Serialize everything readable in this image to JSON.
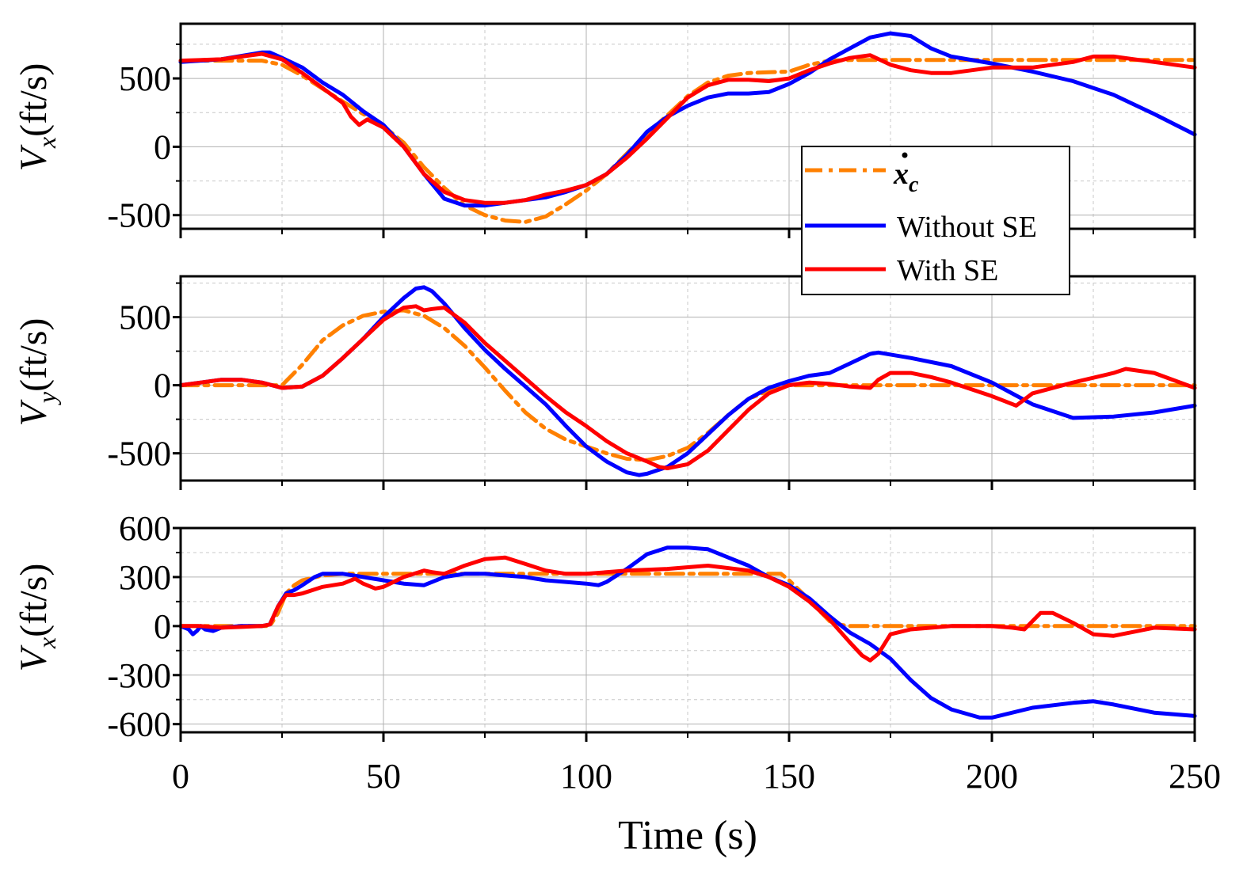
{
  "chart_data": [
    {
      "type": "line",
      "panel": "top",
      "ylabel": {
        "main": "V",
        "sub": "x",
        "unit": "(ft/s)"
      },
      "xlim": [
        0,
        250
      ],
      "ylim": [
        -600,
        900
      ],
      "yticks": [
        -500,
        0,
        500
      ],
      "ytick_labels": [
        "-500",
        "0",
        "500"
      ],
      "grid": true,
      "series": [
        {
          "name": "x_c_dot",
          "color": "#ff8000",
          "style": "dashdot",
          "x": [
            0,
            10,
            20,
            25,
            30,
            40,
            50,
            55,
            60,
            65,
            70,
            75,
            80,
            85,
            90,
            95,
            100,
            105,
            110,
            115,
            120,
            125,
            130,
            135,
            140,
            145,
            150,
            155,
            160,
            165,
            170,
            175,
            180,
            190,
            200,
            210,
            220,
            230,
            240,
            250
          ],
          "y": [
            630,
            630,
            630,
            600,
            520,
            330,
            150,
            30,
            -150,
            -300,
            -430,
            -500,
            -540,
            -550,
            -510,
            -420,
            -320,
            -200,
            -50,
            100,
            230,
            370,
            470,
            520,
            540,
            545,
            550,
            600,
            630,
            635,
            635,
            635,
            635,
            635,
            635,
            635,
            635,
            635,
            635,
            635
          ]
        },
        {
          "name": "Without SE",
          "color": "#0000ff",
          "style": "solid",
          "x": [
            0,
            10,
            20,
            22,
            25,
            30,
            35,
            40,
            45,
            50,
            55,
            60,
            65,
            70,
            75,
            80,
            85,
            90,
            95,
            100,
            105,
            110,
            115,
            120,
            125,
            130,
            135,
            140,
            145,
            150,
            155,
            160,
            165,
            170,
            175,
            180,
            185,
            190,
            200,
            210,
            220,
            230,
            240,
            250
          ],
          "y": [
            620,
            640,
            690,
            690,
            650,
            580,
            470,
            380,
            260,
            160,
            0,
            -200,
            -380,
            -430,
            -430,
            -410,
            -390,
            -370,
            -330,
            -280,
            -200,
            -60,
            110,
            220,
            300,
            360,
            390,
            390,
            400,
            460,
            540,
            640,
            720,
            800,
            830,
            810,
            720,
            660,
            610,
            550,
            480,
            380,
            240,
            90
          ]
        },
        {
          "name": "With SE",
          "color": "#ff0000",
          "style": "solid",
          "x": [
            0,
            10,
            20,
            25,
            30,
            35,
            40,
            42,
            44,
            46,
            50,
            55,
            60,
            65,
            70,
            75,
            80,
            85,
            90,
            95,
            100,
            105,
            110,
            115,
            120,
            125,
            130,
            135,
            140,
            145,
            150,
            155,
            160,
            165,
            170,
            175,
            180,
            185,
            190,
            200,
            210,
            220,
            225,
            230,
            240,
            250
          ],
          "y": [
            630,
            640,
            680,
            640,
            540,
            430,
            320,
            220,
            160,
            200,
            140,
            0,
            -200,
            -330,
            -390,
            -410,
            -410,
            -390,
            -350,
            -320,
            -280,
            -200,
            -80,
            60,
            210,
            360,
            450,
            490,
            490,
            480,
            500,
            560,
            610,
            650,
            670,
            600,
            560,
            540,
            540,
            580,
            580,
            620,
            660,
            660,
            620,
            580
          ]
        }
      ]
    },
    {
      "type": "line",
      "panel": "middle",
      "ylabel": {
        "main": "V",
        "sub": "y",
        "unit": "(ft/s)"
      },
      "xlim": [
        0,
        250
      ],
      "ylim": [
        -700,
        800
      ],
      "yticks": [
        -500,
        0,
        500
      ],
      "ytick_labels": [
        "-500",
        "0",
        "500"
      ],
      "grid": true,
      "series": [
        {
          "name": "x_c_dot",
          "color": "#ff8000",
          "style": "dashdot",
          "x": [
            0,
            10,
            20,
            25,
            30,
            35,
            40,
            45,
            50,
            55,
            60,
            65,
            70,
            75,
            80,
            85,
            90,
            95,
            100,
            105,
            110,
            115,
            120,
            125,
            130,
            135,
            140,
            145,
            150,
            155,
            160,
            170,
            180,
            190,
            200,
            210,
            220,
            230,
            240,
            250
          ],
          "y": [
            0,
            0,
            0,
            0,
            150,
            330,
            440,
            510,
            540,
            550,
            510,
            420,
            290,
            130,
            -40,
            -200,
            -320,
            -400,
            -450,
            -500,
            -540,
            -550,
            -520,
            -460,
            -350,
            -220,
            -100,
            -40,
            0,
            0,
            0,
            0,
            0,
            0,
            0,
            0,
            0,
            0,
            0,
            0
          ]
        },
        {
          "name": "Without SE",
          "color": "#0000ff",
          "style": "solid",
          "x": [
            0,
            10,
            15,
            20,
            25,
            30,
            35,
            40,
            45,
            50,
            55,
            58,
            60,
            62,
            65,
            70,
            75,
            80,
            85,
            90,
            95,
            100,
            105,
            110,
            113,
            115,
            120,
            125,
            130,
            135,
            140,
            145,
            150,
            155,
            160,
            165,
            170,
            172,
            180,
            190,
            200,
            210,
            220,
            230,
            240,
            250
          ],
          "y": [
            0,
            40,
            40,
            20,
            -20,
            -10,
            70,
            200,
            340,
            500,
            640,
            710,
            720,
            690,
            600,
            420,
            260,
            120,
            -10,
            -140,
            -300,
            -450,
            -560,
            -640,
            -660,
            -650,
            -600,
            -500,
            -360,
            -220,
            -100,
            -20,
            30,
            70,
            90,
            160,
            230,
            240,
            200,
            140,
            20,
            -140,
            -240,
            -230,
            -200,
            -150
          ]
        },
        {
          "name": "With SE",
          "color": "#ff0000",
          "style": "solid",
          "x": [
            0,
            10,
            15,
            20,
            25,
            30,
            35,
            40,
            45,
            50,
            55,
            58,
            60,
            62,
            65,
            70,
            75,
            80,
            85,
            90,
            95,
            100,
            105,
            110,
            115,
            118,
            120,
            125,
            130,
            135,
            140,
            145,
            150,
            155,
            160,
            165,
            170,
            172,
            175,
            180,
            185,
            190,
            200,
            206,
            210,
            220,
            230,
            233,
            240,
            250
          ],
          "y": [
            0,
            40,
            40,
            20,
            -20,
            -10,
            70,
            200,
            340,
            480,
            570,
            580,
            550,
            560,
            570,
            460,
            310,
            180,
            50,
            -80,
            -200,
            -300,
            -410,
            -500,
            -560,
            -600,
            -610,
            -580,
            -480,
            -330,
            -180,
            -60,
            0,
            20,
            10,
            -10,
            -20,
            40,
            90,
            90,
            60,
            20,
            -80,
            -150,
            -60,
            20,
            90,
            120,
            90,
            -20
          ]
        }
      ]
    },
    {
      "type": "line",
      "panel": "bottom",
      "ylabel": {
        "main": "V",
        "sub": "x",
        "unit": "(ft/s)"
      },
      "xlim": [
        0,
        250
      ],
      "ylim": [
        -650,
        600
      ],
      "yticks": [
        -600,
        -300,
        0,
        300,
        600
      ],
      "ytick_labels": [
        "-600",
        "-300",
        "0",
        "300",
        "600"
      ],
      "xticks": [
        0,
        50,
        100,
        150,
        200,
        250
      ],
      "xtick_labels": [
        "0",
        "50",
        "100",
        "150",
        "200",
        "250"
      ],
      "xlabel": "Time (s)",
      "grid": true,
      "series": [
        {
          "name": "x_c_dot",
          "color": "#ff8000",
          "style": "dashdot",
          "x": [
            0,
            10,
            20,
            22,
            24,
            26,
            28,
            30,
            35,
            40,
            50,
            60,
            70,
            80,
            90,
            100,
            110,
            120,
            130,
            140,
            148,
            150,
            155,
            158,
            160,
            162,
            165,
            170,
            180,
            190,
            200,
            210,
            220,
            230,
            240,
            250
          ],
          "y": [
            0,
            0,
            0,
            0,
            80,
            200,
            250,
            280,
            310,
            320,
            320,
            320,
            320,
            320,
            320,
            320,
            320,
            320,
            320,
            320,
            320,
            280,
            160,
            80,
            30,
            10,
            0,
            0,
            0,
            0,
            0,
            0,
            0,
            0,
            0,
            0
          ]
        },
        {
          "name": "Without SE",
          "color": "#0000ff",
          "style": "solid",
          "x": [
            0,
            2,
            3,
            4,
            5,
            6,
            8,
            10,
            15,
            20,
            22,
            24,
            26,
            28,
            30,
            33,
            35,
            40,
            45,
            50,
            55,
            60,
            65,
            70,
            75,
            80,
            85,
            90,
            95,
            100,
            103,
            105,
            110,
            115,
            120,
            125,
            130,
            135,
            140,
            145,
            150,
            155,
            160,
            165,
            170,
            175,
            180,
            185,
            190,
            197,
            200,
            210,
            220,
            225,
            230,
            240,
            250
          ],
          "y": [
            0,
            -20,
            -50,
            -30,
            0,
            -20,
            -30,
            -10,
            0,
            0,
            10,
            120,
            200,
            220,
            250,
            300,
            320,
            320,
            300,
            280,
            260,
            250,
            300,
            320,
            320,
            310,
            300,
            280,
            270,
            260,
            250,
            270,
            350,
            440,
            480,
            480,
            470,
            420,
            370,
            300,
            250,
            170,
            60,
            -40,
            -110,
            -200,
            -330,
            -440,
            -510,
            -560,
            -560,
            -500,
            -470,
            -460,
            -480,
            -530,
            -550
          ]
        },
        {
          "name": "With SE",
          "color": "#ff0000",
          "style": "solid",
          "x": [
            0,
            5,
            10,
            15,
            20,
            22,
            24,
            26,
            28,
            30,
            35,
            40,
            43,
            45,
            48,
            50,
            55,
            60,
            62,
            65,
            70,
            75,
            80,
            85,
            90,
            95,
            100,
            110,
            120,
            130,
            140,
            145,
            150,
            155,
            160,
            165,
            168,
            170,
            172,
            175,
            180,
            190,
            200,
            205,
            208,
            212,
            215,
            220,
            225,
            230,
            240,
            250
          ],
          "y": [
            0,
            0,
            -10,
            -5,
            0,
            10,
            120,
            190,
            190,
            200,
            240,
            260,
            290,
            260,
            230,
            240,
            300,
            340,
            330,
            320,
            370,
            410,
            420,
            380,
            340,
            320,
            320,
            340,
            350,
            370,
            340,
            300,
            240,
            150,
            40,
            -100,
            -180,
            -210,
            -170,
            -50,
            -20,
            0,
            0,
            -10,
            -20,
            80,
            80,
            20,
            -50,
            -60,
            -10,
            -20
          ]
        }
      ]
    }
  ],
  "legend": {
    "entries": [
      {
        "key": "x_c_dot",
        "label_main": "x",
        "label_sub": "c",
        "color": "#ff8000",
        "style": "dashdot"
      },
      {
        "key": "without_se",
        "label": "Without SE",
        "color": "#0000ff",
        "style": "solid"
      },
      {
        "key": "with_se",
        "label": "With SE",
        "color": "#ff0000",
        "style": "solid"
      }
    ],
    "placement": "top-right, over top and middle panels"
  }
}
